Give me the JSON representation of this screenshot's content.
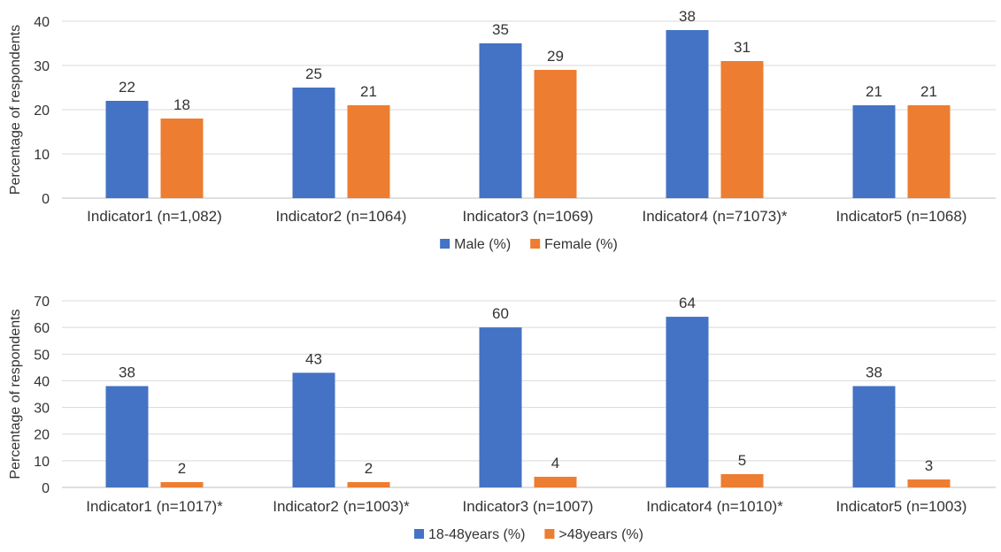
{
  "chart_data": [
    {
      "type": "bar",
      "title": "",
      "xlabel": "",
      "ylabel": "Percentage of respondents",
      "ylim": [
        0,
        40
      ],
      "yticks": [
        0,
        10,
        20,
        30,
        40
      ],
      "grid": true,
      "legend_position": "bottom",
      "categories": [
        "Indicator1 (n=1,082)",
        "Indicator2 (n=1064)",
        "Indicator3 (n=1069)",
        "Indicator4 (n=71073)*",
        "Indicator5 (n=1068)"
      ],
      "series": [
        {
          "name": "Male (%)",
          "color": "#4472C4",
          "values": [
            22,
            25,
            35,
            38,
            21
          ]
        },
        {
          "name": "Female (%)",
          "color": "#ED7D31",
          "values": [
            18,
            21,
            29,
            31,
            21
          ]
        }
      ]
    },
    {
      "type": "bar",
      "title": "",
      "xlabel": "",
      "ylabel": "Percentage of respondents",
      "ylim": [
        0,
        70
      ],
      "yticks": [
        0,
        10,
        20,
        30,
        40,
        50,
        60,
        70
      ],
      "grid": true,
      "legend_position": "bottom",
      "categories": [
        "Indicator1 (n=1017)*",
        "Indicator2 (n=1003)*",
        "Indicator3 (n=1007)",
        "Indicator4 (n=1010)*",
        "Indicator5 (n=1003)"
      ],
      "series": [
        {
          "name": "18-48years (%)",
          "color": "#4472C4",
          "values": [
            38,
            43,
            60,
            64,
            38
          ]
        },
        {
          "name": ">48years (%)",
          "color": "#ED7D31",
          "values": [
            2,
            2,
            4,
            5,
            3
          ]
        }
      ]
    }
  ],
  "style": {
    "grid_color": "#D9D9D9",
    "axis_color": "#BFBFBF",
    "text_color": "#333333"
  }
}
